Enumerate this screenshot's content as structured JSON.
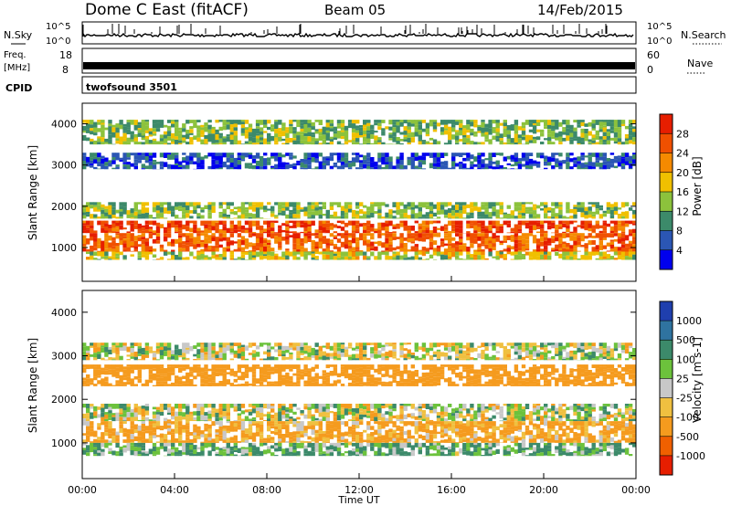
{
  "header": {
    "title": "Dome C East (fitACF)",
    "beam": "Beam 05",
    "date": "14/Feb/2015"
  },
  "status_panels": {
    "nsky_label": "N.Sky",
    "nsky_ticks": [
      "10^5",
      "10^0"
    ],
    "nsearch_label": "N.Search",
    "nsearch_ticks": [
      "10^5",
      "10^0"
    ],
    "freq_label_top": "Freq.",
    "freq_label_units": "[MHz]",
    "freq_ticks": [
      "18",
      "8"
    ],
    "nave_label": "Nave",
    "nave_ticks": [
      "60",
      "0"
    ],
    "cpid_label": "CPID",
    "cpid_value": "twofsound 3501"
  },
  "chart_data": [
    {
      "type": "heatmap",
      "panel": "power",
      "ylabel": "Slant Range [km]",
      "ylim": [
        180,
        4500
      ],
      "yticks": [
        1000,
        2000,
        3000,
        4000
      ],
      "xlabel": "",
      "xlim_hours": [
        0,
        24
      ],
      "colorbar_label": "Power [dB]",
      "colorbar_ticks": [
        "28",
        "24",
        "20",
        "16",
        "12",
        "8",
        "4"
      ],
      "colorbar_colors": [
        "#0000ee",
        "#2b56b4",
        "#3c8a6a",
        "#8cc23c",
        "#f0c000",
        "#f58a00",
        "#f05000",
        "#e61e00"
      ],
      "bands": [
        {
          "range_km": [
            1350,
            1650
          ],
          "value": 27
        },
        {
          "range_km": [
            900,
            1350
          ],
          "value": 25
        },
        {
          "range_km": [
            700,
            900
          ],
          "value": 16
        },
        {
          "range_km": [
            1700,
            2100
          ],
          "value": 14
        },
        {
          "range_km": [
            2900,
            3300
          ],
          "value": 6
        },
        {
          "range_km": [
            3500,
            4100
          ],
          "value": 13
        }
      ]
    },
    {
      "type": "heatmap",
      "panel": "velocity",
      "ylabel": "Slant Range [km]",
      "ylim": [
        180,
        4500
      ],
      "yticks": [
        1000,
        2000,
        3000,
        4000
      ],
      "xlabel": "Time UT",
      "xlim_hours": [
        0,
        24
      ],
      "xticks": [
        "00:00",
        "04:00",
        "08:00",
        "12:00",
        "16:00",
        "20:00",
        "00:00"
      ],
      "colorbar_label": "Velocity [m s-1]",
      "colorbar_ticks": [
        "1000",
        "500",
        "100",
        "25",
        "-25",
        "-100",
        "-500",
        "-1000"
      ],
      "colorbar_colors": [
        "#1f3fae",
        "#2f73a0",
        "#3c8a6a",
        "#6cc23c",
        "#c8c8c8",
        "#f0c040",
        "#f59b1e",
        "#f06000",
        "#e61e00"
      ],
      "bands": [
        {
          "range_km": [
            1500,
            1900
          ],
          "value": 0
        },
        {
          "range_km": [
            1000,
            1500
          ],
          "value": -150
        },
        {
          "range_km": [
            700,
            1000
          ],
          "value": 120
        },
        {
          "range_km": [
            2900,
            3300
          ],
          "value": 0
        },
        {
          "range_km": [
            2300,
            2800
          ],
          "value": -300
        }
      ]
    }
  ]
}
